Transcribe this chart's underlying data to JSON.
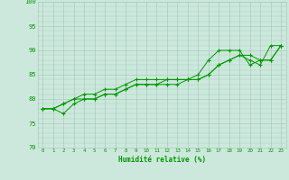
{
  "xlabel": "Humidité relative (%)",
  "xlim": [
    -0.5,
    23.5
  ],
  "ylim": [
    70,
    100
  ],
  "yticks": [
    70,
    75,
    80,
    85,
    90,
    95,
    100
  ],
  "xtick_labels": [
    "0",
    "1",
    "2",
    "3",
    "4",
    "5",
    "6",
    "7",
    "8",
    "9",
    "10",
    "11",
    "12",
    "13",
    "14",
    "15",
    "16",
    "17",
    "18",
    "19",
    "20",
    "21",
    "22",
    "23"
  ],
  "bg_color": "#cce8dc",
  "grid_color": "#aaccbb",
  "line_color": "#009900",
  "series": [
    [
      78,
      78,
      77,
      79,
      80,
      80,
      81,
      81,
      82,
      83,
      83,
      83,
      84,
      84,
      84,
      85,
      88,
      90,
      90,
      90,
      87,
      88,
      88,
      91
    ],
    [
      78,
      78,
      79,
      80,
      81,
      81,
      82,
      82,
      83,
      84,
      84,
      84,
      84,
      84,
      84,
      84,
      85,
      87,
      88,
      89,
      89,
      88,
      88,
      91
    ],
    [
      78,
      78,
      79,
      80,
      80,
      80,
      81,
      81,
      82,
      83,
      83,
      83,
      83,
      83,
      84,
      84,
      85,
      87,
      88,
      89,
      88,
      87,
      91,
      91
    ]
  ]
}
